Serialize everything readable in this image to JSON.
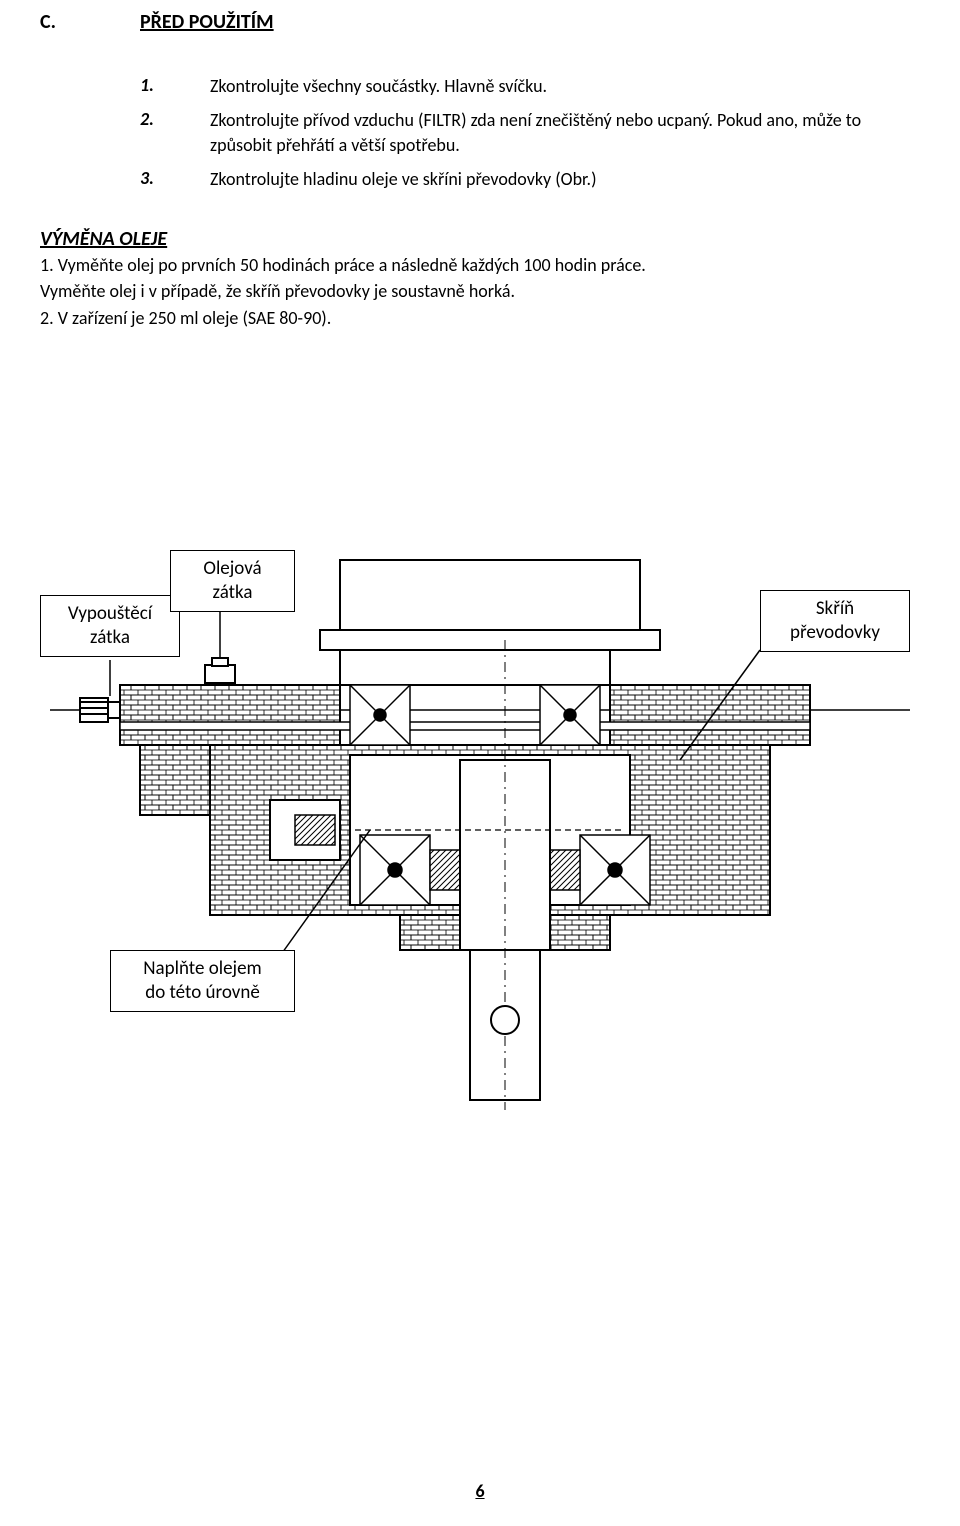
{
  "section": {
    "letter": "C.",
    "title": "PŘED POUŽITÍM"
  },
  "items": [
    {
      "num": "1.",
      "text": "Zkontrolujte všechny součástky. Hlavně svíčku."
    },
    {
      "num": "2.",
      "text": "Zkontrolujte přívod vzduchu (FILTR) zda není znečištěný nebo ucpaný. Pokud ano, může to způsobit přehřátí a větší spotřebu."
    },
    {
      "num": "3.",
      "text": "Zkontrolujte hladinu oleje ve skříni převodovky (Obr.)"
    }
  ],
  "subsection": {
    "title": "VÝMĚNA OLEJE",
    "lines": [
      "1. Vyměňte olej po prvních 50 hodinách práce a následně každých 100 hodin práce.",
      "Vyměňte olej i v případě, že skříň převodovky je soustavně horká.",
      "2. V zařízení je 250 ml oleje (SAE 80-90)."
    ]
  },
  "diagram": {
    "labels": {
      "drain_plug": "Vypouštěcí\nzátka",
      "oil_plug": "Olejová\nzátka",
      "gearbox": "Skříň\npřevodovky",
      "fill_level": "Naplňte olejem\ndo této úrovně"
    },
    "colors": {
      "stroke": "#000000",
      "fill_bg": "#ffffff",
      "hatch": "#000000"
    }
  },
  "page_number": "6"
}
